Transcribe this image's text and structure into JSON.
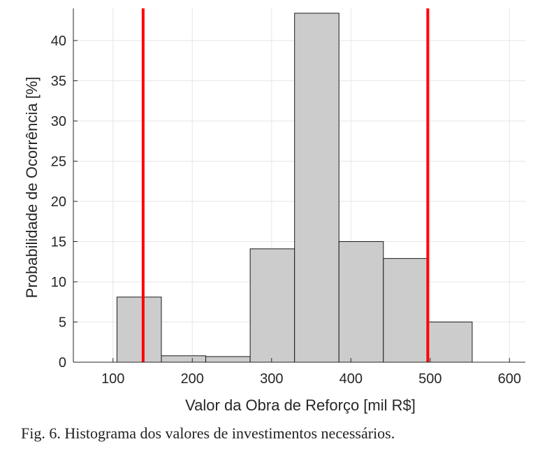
{
  "chart_data": {
    "type": "bar",
    "xlabel": "Valor da Obra de Reforço [mil R$]",
    "ylabel": "Probabilidade de Ocorrência [%]",
    "xlim": [
      50,
      620
    ],
    "ylim": [
      0,
      44
    ],
    "xticks": [
      100,
      200,
      300,
      400,
      500,
      600
    ],
    "yticks": [
      0,
      5,
      10,
      15,
      20,
      25,
      30,
      35,
      40
    ],
    "grid": true,
    "bins": [
      {
        "start": 105,
        "end": 161,
        "value": 8.1
      },
      {
        "start": 161,
        "end": 217,
        "value": 0.8
      },
      {
        "start": 217,
        "end": 273,
        "value": 0.7
      },
      {
        "start": 273,
        "end": 329,
        "value": 14.1
      },
      {
        "start": 329,
        "end": 385,
        "value": 43.4
      },
      {
        "start": 385,
        "end": 441,
        "value": 15.0
      },
      {
        "start": 441,
        "end": 497,
        "value": 12.9
      },
      {
        "start": 497,
        "end": 553,
        "value": 5.0
      }
    ],
    "reference_lines": [
      138,
      497
    ],
    "colors": {
      "bar_fill": "#cccccc",
      "bar_stroke": "#1a1a1a",
      "reference_line": "#ff0000",
      "grid": "#e6e6e6"
    }
  },
  "caption": "Fig. 6. Histograma dos valores de investimentos necessários."
}
